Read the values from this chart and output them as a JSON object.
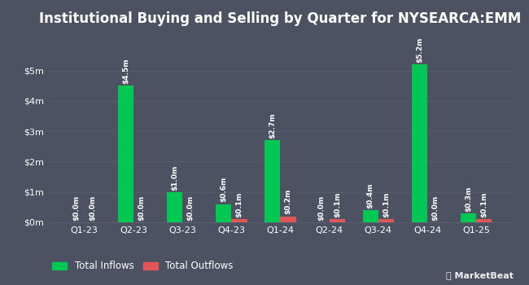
{
  "title": "Institutional Buying and Selling by Quarter for NYSEARCA:EMM",
  "quarters": [
    "Q1-23",
    "Q2-23",
    "Q3-23",
    "Q4-23",
    "Q1-24",
    "Q2-24",
    "Q3-24",
    "Q4-24",
    "Q1-25"
  ],
  "inflows": [
    0.0,
    4.5,
    1.0,
    0.6,
    2.7,
    0.0,
    0.4,
    5.2,
    0.3
  ],
  "outflows": [
    0.0,
    0.0,
    0.0,
    0.1,
    0.2,
    0.1,
    0.1,
    0.0,
    0.1
  ],
  "inflow_labels": [
    "$0.0m",
    "$4.5m",
    "$1.0m",
    "$0.6m",
    "$2.7m",
    "$0.0m",
    "$0.4m",
    "$5.2m",
    "$0.3m"
  ],
  "outflow_labels": [
    "$0.0m",
    "$0.0m",
    "$0.0m",
    "$0.1m",
    "$0.2m",
    "$0.1m",
    "$0.1m",
    "$0.0m",
    "$0.1m"
  ],
  "inflow_color": "#00c853",
  "outflow_color": "#e05555",
  "background_color": "#4d5263",
  "text_color": "#ffffff",
  "grid_color": "#5a5e6e",
  "ylabel_ticks": [
    "$0m",
    "$1m",
    "$2m",
    "$3m",
    "$4m",
    "$5m"
  ],
  "ylabel_values": [
    0,
    1,
    2,
    3,
    4,
    5
  ],
  "ylim": [
    0,
    6.2
  ],
  "bar_width": 0.32,
  "legend_inflow": "Total Inflows",
  "legend_outflow": "Total Outflows",
  "title_fontsize": 12,
  "label_fontsize": 6.5,
  "tick_fontsize": 8,
  "legend_fontsize": 8.5
}
